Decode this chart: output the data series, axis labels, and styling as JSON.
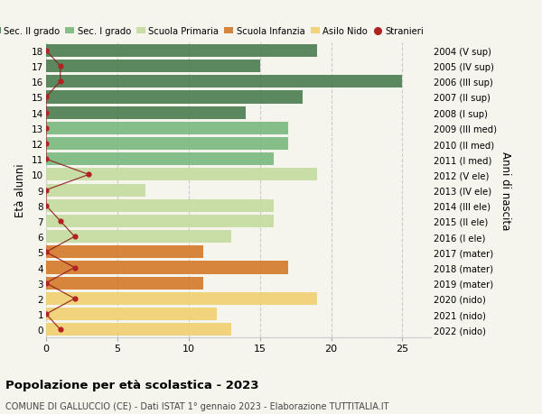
{
  "ages": [
    18,
    17,
    16,
    15,
    14,
    13,
    12,
    11,
    10,
    9,
    8,
    7,
    6,
    5,
    4,
    3,
    2,
    1,
    0
  ],
  "right_labels": [
    "2004 (V sup)",
    "2005 (IV sup)",
    "2006 (III sup)",
    "2007 (II sup)",
    "2008 (I sup)",
    "2009 (III med)",
    "2010 (II med)",
    "2011 (I med)",
    "2012 (V ele)",
    "2013 (IV ele)",
    "2014 (III ele)",
    "2015 (II ele)",
    "2016 (I ele)",
    "2017 (mater)",
    "2018 (mater)",
    "2019 (mater)",
    "2020 (nido)",
    "2021 (nido)",
    "2022 (nido)"
  ],
  "bar_values": [
    19,
    15,
    25,
    18,
    14,
    17,
    17,
    16,
    19,
    7,
    16,
    16,
    13,
    11,
    17,
    11,
    19,
    12,
    13
  ],
  "bar_colors": [
    "#4a7c4e",
    "#4a7c4e",
    "#4a7c4e",
    "#4a7c4e",
    "#4a7c4e",
    "#7ab87e",
    "#7ab87e",
    "#7ab87e",
    "#c5dca0",
    "#c5dca0",
    "#c5dca0",
    "#c5dca0",
    "#c5dca0",
    "#d4782a",
    "#d4782a",
    "#d4782a",
    "#f0d070",
    "#f0d070",
    "#f0d070"
  ],
  "stranieri_values": [
    0,
    1,
    1,
    0,
    0,
    0,
    0,
    0,
    3,
    0,
    0,
    1,
    2,
    0,
    2,
    0,
    2,
    0,
    1
  ],
  "legend_labels": [
    "Sec. II grado",
    "Sec. I grado",
    "Scuola Primaria",
    "Scuola Infanzia",
    "Asilo Nido",
    "Stranieri"
  ],
  "legend_colors": [
    "#4a7c4e",
    "#7ab87e",
    "#c5dca0",
    "#d4782a",
    "#f0d070",
    "#b22222"
  ],
  "title": "Popolazione per età scolastica - 2023",
  "subtitle": "COMUNE DI GALLUCCIO (CE) - Dati ISTAT 1° gennaio 2023 - Elaborazione TUTTITALIA.IT",
  "ylabel_left": "Età alunni",
  "ylabel_right": "Anni di nascita",
  "xlim": [
    0,
    27
  ],
  "ylim": [
    -0.5,
    18.5
  ],
  "background_color": "#f5f5ee",
  "bar_alpha": 0.9,
  "bar_height": 0.82
}
